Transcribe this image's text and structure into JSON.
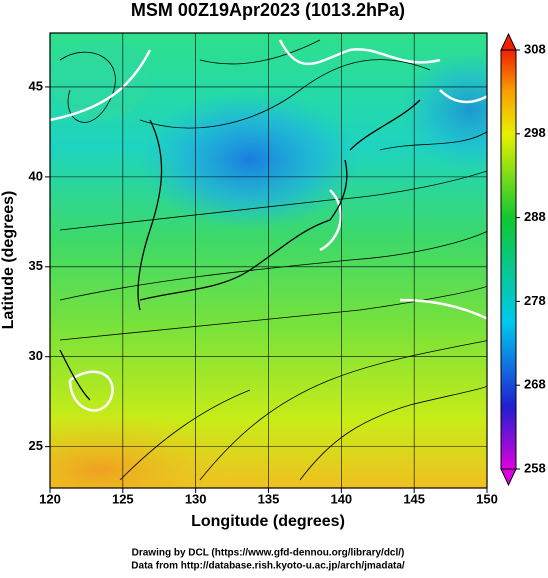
{
  "map": {
    "title": "MSM 00Z19Apr2023 (1013.2hPa)",
    "xlabel": "Longitude (degrees)",
    "ylabel": "Latitude  (degrees)",
    "xlim": [
      120,
      150
    ],
    "ylim": [
      22.7,
      48
    ],
    "xticks": [
      120,
      125,
      130,
      135,
      140,
      145,
      150
    ],
    "yticks": [
      25,
      30,
      35,
      40,
      45
    ],
    "grid": true
  },
  "colorbar": {
    "lim": [
      258,
      308
    ],
    "ticks": [
      258,
      268,
      278,
      288,
      298,
      308
    ]
  },
  "credits": [
    "Drawing by DCL (https://www.gfd-dennou.org/library/dcl/)",
    "Data from http://database.rish.kyoto-u.ac.jp/arch/jmadata/"
  ]
}
